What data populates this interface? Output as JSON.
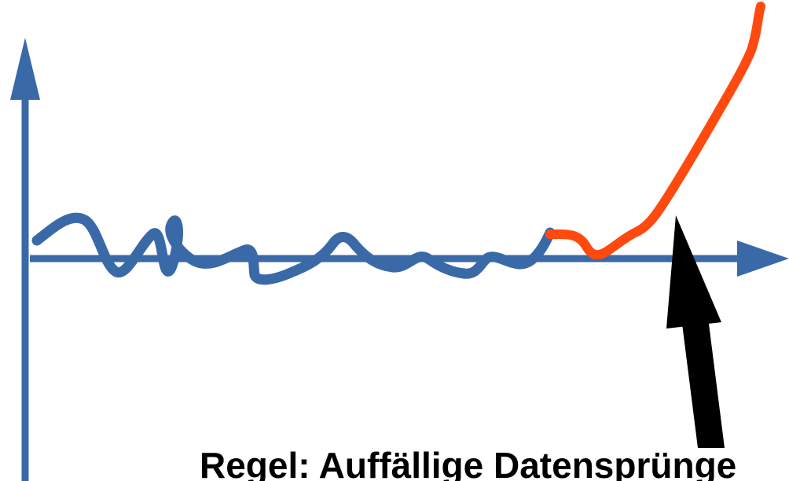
{
  "caption": "Regel: Auffällige Datensprünge",
  "colors": {
    "axis": "#3A69A8",
    "baseline_curve": "#3A69A8",
    "spike_curve": "#FF4A0F",
    "arrow": "#000000",
    "text": "#000000",
    "background": "#FFFFFF"
  },
  "icons": {
    "y_axis_head": "arrowhead-up-icon",
    "x_axis_head": "arrowhead-right-icon",
    "pointer": "pointer-arrow-icon"
  }
}
